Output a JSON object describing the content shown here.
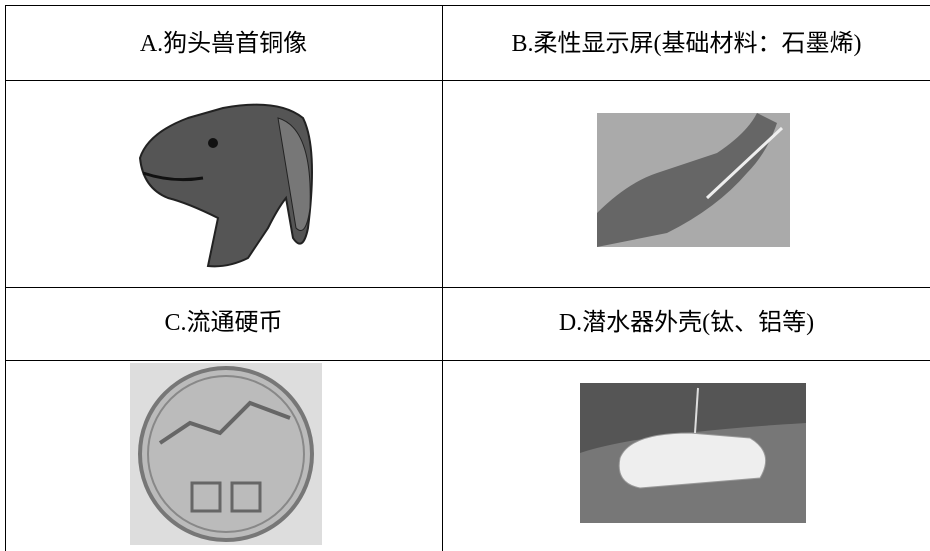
{
  "table": {
    "rows": [
      [
        "A.狗头兽首铜像",
        "B.柔性显示屏(基础材料：石墨烯)"
      ],
      [
        "C.流通硬币",
        "D.潜水器外壳(钛、铝等)"
      ]
    ]
  }
}
